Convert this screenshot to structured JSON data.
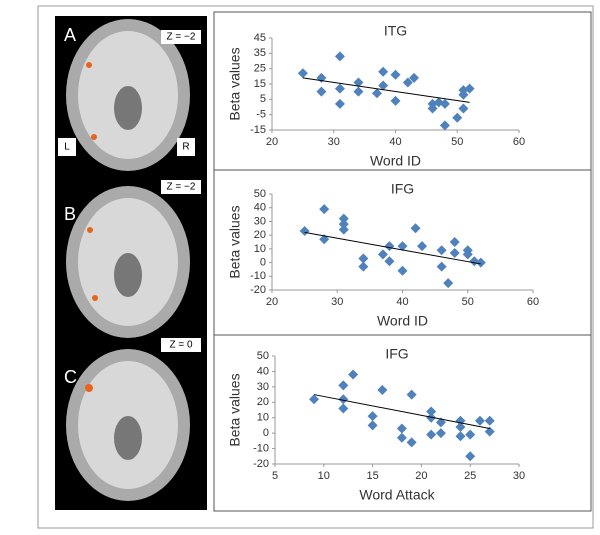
{
  "panels": [
    {
      "label": "A",
      "z": "Z = −2"
    },
    {
      "label": "B",
      "z": "Z = −2"
    },
    {
      "label": "C",
      "z": "Z = 0"
    }
  ],
  "orientation": {
    "left": "L",
    "right": "R"
  },
  "chart_data": [
    {
      "type": "scatter",
      "title": "ITG",
      "x_label": "Word ID",
      "y_label": "Beta values",
      "color": "#4f81bd",
      "grid": false,
      "x": [
        25,
        28,
        28,
        31,
        31,
        31,
        34,
        34,
        37,
        38,
        38,
        40,
        40,
        42,
        43,
        46,
        46,
        47,
        48,
        48,
        50,
        51,
        51,
        51,
        52
      ],
      "values": [
        22,
        19,
        10,
        33,
        12,
        2,
        16,
        10,
        9,
        23,
        14,
        4,
        21,
        16,
        19,
        2,
        -1,
        3,
        2,
        -12,
        -7,
        -1,
        11,
        8,
        12
      ],
      "trendline": {
        "x": [
          25,
          52
        ],
        "values": [
          19,
          3
        ],
        "color": "#000000"
      },
      "xlim": [
        20,
        60
      ],
      "xticks": [
        20,
        30,
        40,
        50,
        60
      ],
      "ylim": [
        -15,
        45
      ],
      "yticks": [
        -15,
        -5,
        5,
        15,
        25,
        35,
        45
      ]
    },
    {
      "type": "scatter",
      "title": "IFG",
      "x_label": "Word ID",
      "y_label": "Beta values",
      "color": "#4f81bd",
      "grid": false,
      "x": [
        25,
        28,
        28,
        31,
        31,
        31,
        34,
        34,
        37,
        38,
        38,
        40,
        40,
        42,
        43,
        46,
        46,
        47,
        48,
        48,
        50,
        50,
        51,
        52
      ],
      "values": [
        23,
        39,
        17,
        32,
        28,
        24,
        3,
        -3,
        6,
        12,
        1,
        12,
        -6,
        25,
        12,
        9,
        -3,
        -15,
        15,
        7,
        9,
        6,
        1,
        0
      ],
      "trendline": {
        "x": [
          25,
          52
        ],
        "values": [
          22,
          -1
        ],
        "color": "#000000"
      },
      "xlim": [
        20,
        60
      ],
      "xticks": [
        20,
        30,
        40,
        50,
        60
      ],
      "ylim": [
        -20,
        50
      ],
      "yticks": [
        -20,
        -10,
        0,
        10,
        20,
        30,
        40,
        50
      ]
    },
    {
      "type": "scatter",
      "title": "IFG",
      "x_label": "Word Attack",
      "y_label": "Beta values",
      "color": "#4f81bd",
      "grid": false,
      "x": [
        9,
        12,
        12,
        12,
        13,
        15,
        15,
        16,
        18,
        18,
        19,
        19,
        21,
        21,
        21,
        22,
        22,
        24,
        24,
        24,
        25,
        25,
        26,
        27,
        27
      ],
      "values": [
        22,
        31,
        22,
        16,
        38,
        11,
        5,
        28,
        3,
        -3,
        25,
        -6,
        14,
        10,
        -1,
        7,
        0,
        8,
        4,
        -2,
        -1,
        -15,
        8,
        8,
        1
      ],
      "trendline": {
        "x": [
          9,
          27
        ],
        "values": [
          25,
          3
        ],
        "color": "#000000"
      },
      "xlim": [
        5,
        30
      ],
      "xticks": [
        5,
        10,
        15,
        20,
        25,
        30
      ],
      "ylim": [
        -20,
        50
      ],
      "yticks": [
        -20,
        -10,
        0,
        10,
        20,
        30,
        40,
        50
      ]
    }
  ]
}
